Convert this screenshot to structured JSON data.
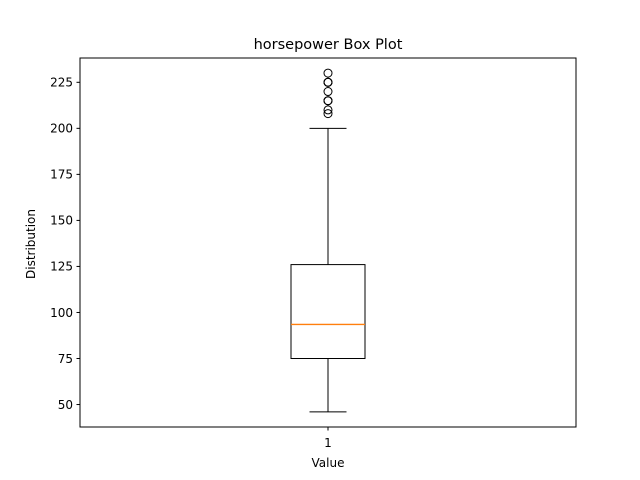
{
  "chart_data": {
    "type": "box",
    "title": "horsepower Box Plot",
    "xlabel": "Value",
    "ylabel": "Distribution",
    "categories": [
      "1"
    ],
    "ylim": [
      37.8,
      238.2
    ],
    "yticks": [
      50,
      75,
      100,
      125,
      150,
      175,
      200,
      225
    ],
    "box": {
      "whisker_low": 46,
      "q1": 75,
      "median": 93.5,
      "q3": 126,
      "whisker_high": 200
    },
    "outliers": [
      208,
      210,
      215,
      215,
      215,
      220,
      225,
      225,
      225,
      230
    ],
    "colors": {
      "median": "#ff7f0e",
      "box": "#000000"
    }
  }
}
